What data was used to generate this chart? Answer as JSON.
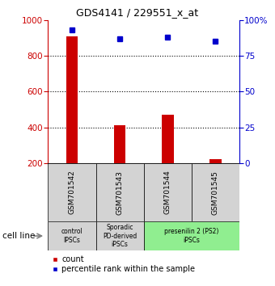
{
  "title": "GDS4141 / 229551_x_at",
  "samples": [
    "GSM701542",
    "GSM701543",
    "GSM701544",
    "GSM701545"
  ],
  "counts": [
    910,
    410,
    470,
    220
  ],
  "percentile_ranks": [
    93,
    87,
    88,
    85
  ],
  "ylim_left": [
    200,
    1000
  ],
  "ylim_right": [
    0,
    100
  ],
  "yticks_left": [
    200,
    400,
    600,
    800,
    1000
  ],
  "yticks_right": [
    0,
    25,
    50,
    75,
    100
  ],
  "bar_color": "#cc0000",
  "dot_color": "#0000cc",
  "bar_width": 0.25,
  "groups": [
    {
      "label": "control\nIPSCs",
      "color": "#d3d3d3",
      "span": [
        0,
        1
      ]
    },
    {
      "label": "Sporadic\nPD-derived\niPSCs",
      "color": "#d3d3d3",
      "span": [
        1,
        2
      ]
    },
    {
      "label": "presenilin 2 (PS2)\niPSCs",
      "color": "#90ee90",
      "span": [
        2,
        4
      ]
    }
  ],
  "tick_label_color_left": "#cc0000",
  "tick_label_color_right": "#0000cc",
  "legend_red_label": "count",
  "legend_blue_label": "percentile rank within the sample",
  "cell_line_label": "cell line",
  "background_color": "#ffffff",
  "sample_box_color": "#d3d3d3",
  "fig_width": 3.4,
  "fig_height": 3.54,
  "dpi": 100
}
